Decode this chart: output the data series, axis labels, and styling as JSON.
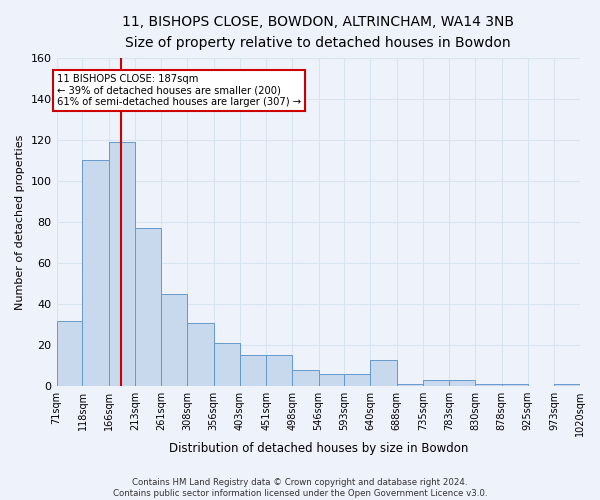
{
  "title1": "11, BISHOPS CLOSE, BOWDON, ALTRINCHAM, WA14 3NB",
  "title2": "Size of property relative to detached houses in Bowdon",
  "xlabel": "Distribution of detached houses by size in Bowdon",
  "ylabel": "Number of detached properties",
  "bin_edges": [
    71,
    118,
    166,
    213,
    261,
    308,
    356,
    403,
    451,
    498,
    546,
    593,
    640,
    688,
    735,
    783,
    830,
    878,
    925,
    973,
    1020
  ],
  "bar_heights": [
    32,
    110,
    119,
    77,
    45,
    31,
    21,
    15,
    15,
    8,
    6,
    6,
    13,
    1,
    3,
    3,
    1,
    1,
    0,
    1
  ],
  "bar_color": "#c8d9ee",
  "bar_edge_color": "#6699cc",
  "property_size": 187,
  "red_line_color": "#cc0000",
  "annotation_line1": "11 BISHOPS CLOSE: 187sqm",
  "annotation_line2": "← 39% of detached houses are smaller (200)",
  "annotation_line3": "61% of semi-detached houses are larger (307) →",
  "annotation_box_color": "#ffffff",
  "annotation_box_edge": "#cc0000",
  "footer_text": "Contains HM Land Registry data © Crown copyright and database right 2024.\nContains public sector information licensed under the Open Government Licence v3.0.",
  "ylim": [
    0,
    160
  ],
  "background_color": "#eef2fb",
  "grid_color": "#d8e4f0",
  "title_fontsize": 10,
  "subtitle_fontsize": 9,
  "tick_label_fontsize": 7,
  "ylabel_fontsize": 8,
  "xlabel_fontsize": 8.5
}
